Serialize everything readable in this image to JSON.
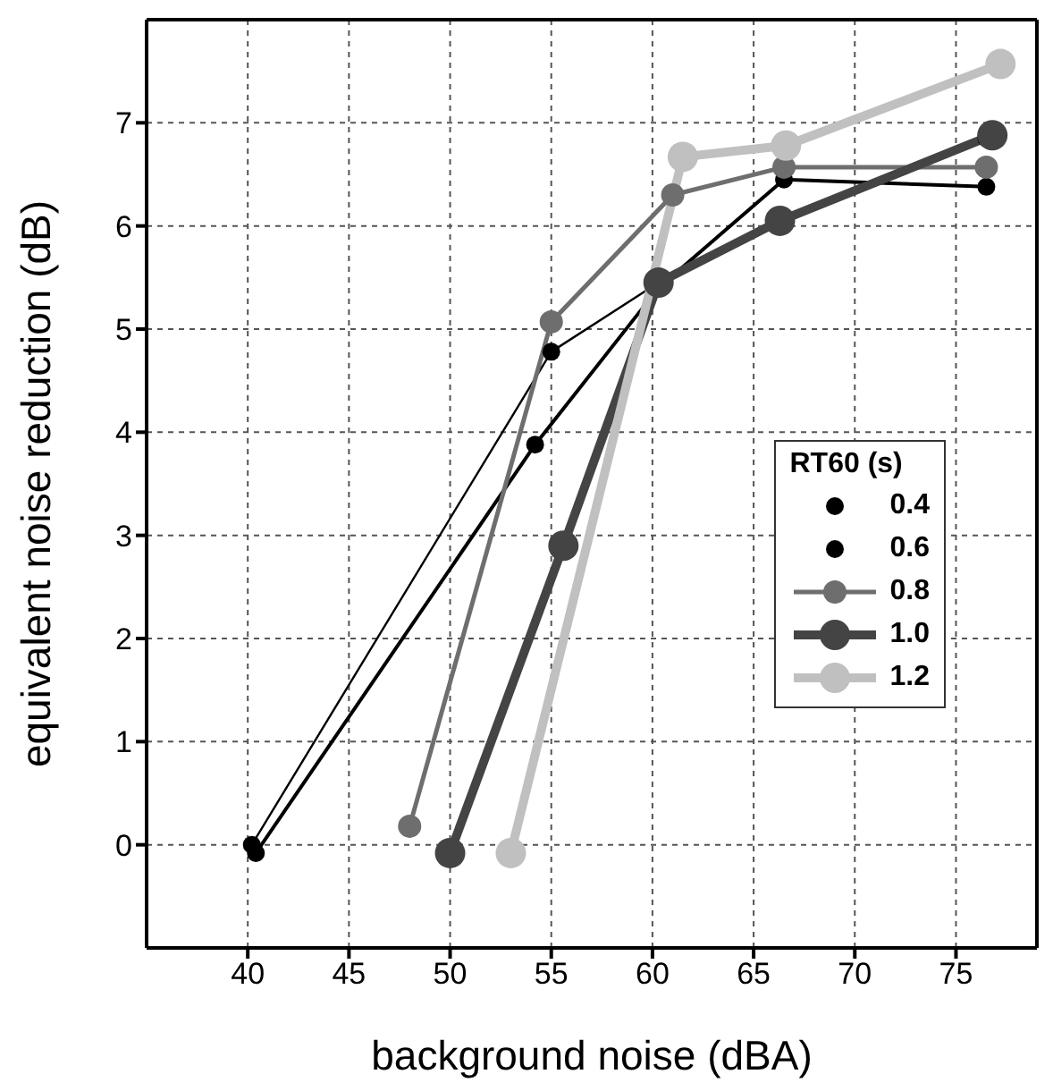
{
  "chart_data": {
    "type": "line",
    "xlabel": "background noise (dBA)",
    "ylabel": "equivalent noise reduction (dB)",
    "legend_title": "RT60 (s)",
    "legend": "right",
    "grid": true,
    "marker": "circle",
    "line_style": "solid",
    "xlim": [
      35,
      79
    ],
    "xticks": [
      40,
      45,
      50,
      55,
      60,
      65,
      70,
      75
    ],
    "ylim": [
      -1,
      8
    ],
    "yticks": [
      0,
      1,
      2,
      3,
      4,
      5,
      6,
      7
    ],
    "series": [
      {
        "name": "0.4",
        "color": "#000000",
        "x": [
          40.2,
          55,
          60.3,
          66.5,
          76.5
        ],
        "values": [
          0,
          4.78,
          5.45,
          6.05,
          6.85
        ]
      },
      {
        "name": "0.6",
        "color": "#000000",
        "x": [
          40.4,
          54.2,
          60.3,
          66.5,
          76.5
        ],
        "values": [
          -0.08,
          3.88,
          5.4,
          6.45,
          6.38
        ]
      },
      {
        "name": "0.8",
        "color": "#6e6e6e",
        "x": [
          48,
          55,
          61,
          66.5,
          76.5
        ],
        "values": [
          0.18,
          5.07,
          6.3,
          6.57,
          6.57
        ]
      },
      {
        "name": "1.0",
        "color": "#444444",
        "x": [
          50,
          55.6,
          60.3,
          66.3,
          76.8
        ],
        "values": [
          -0.08,
          2.9,
          5.45,
          6.05,
          6.88
        ]
      },
      {
        "name": "1.2",
        "color": "#c0c0c0",
        "x": [
          53,
          61.5,
          66.6,
          77.2
        ],
        "values": [
          -0.08,
          6.67,
          6.78,
          7.57
        ]
      }
    ]
  }
}
